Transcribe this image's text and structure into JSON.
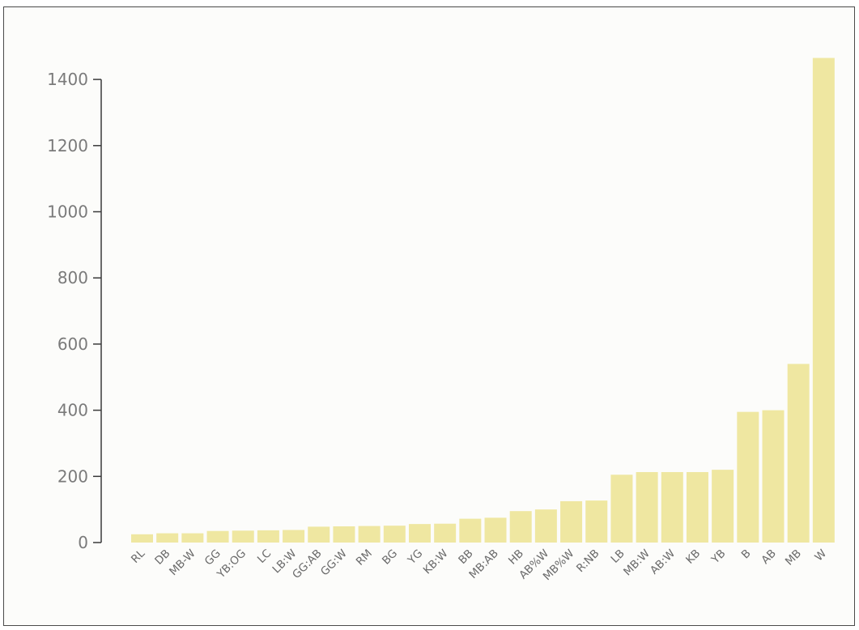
{
  "chart_data": {
    "type": "bar",
    "title": "",
    "xlabel": "",
    "ylabel": "",
    "ylim": [
      0,
      1400
    ],
    "yticks": [
      0,
      200,
      400,
      600,
      800,
      1000,
      1200,
      1400
    ],
    "grid": false,
    "bar_color": "#efe7a1",
    "categories": [
      "RL",
      "DB",
      "MB-W",
      "GG",
      "YB:OG",
      "LC",
      "LB:W",
      "GG:AB",
      "GG:W",
      "RM",
      "BG",
      "YG",
      "KB:W",
      "BB",
      "MB:AB",
      "HB",
      "AB%W",
      "MB%W",
      "R:NB",
      "LB",
      "MB:W",
      "AB:W",
      "KB",
      "YB",
      "B",
      "AB",
      "MB",
      "W"
    ],
    "values": [
      25,
      28,
      28,
      35,
      36,
      37,
      38,
      48,
      49,
      50,
      51,
      56,
      57,
      72,
      75,
      95,
      100,
      125,
      127,
      205,
      213,
      213,
      213,
      220,
      395,
      400,
      540,
      1465
    ]
  }
}
